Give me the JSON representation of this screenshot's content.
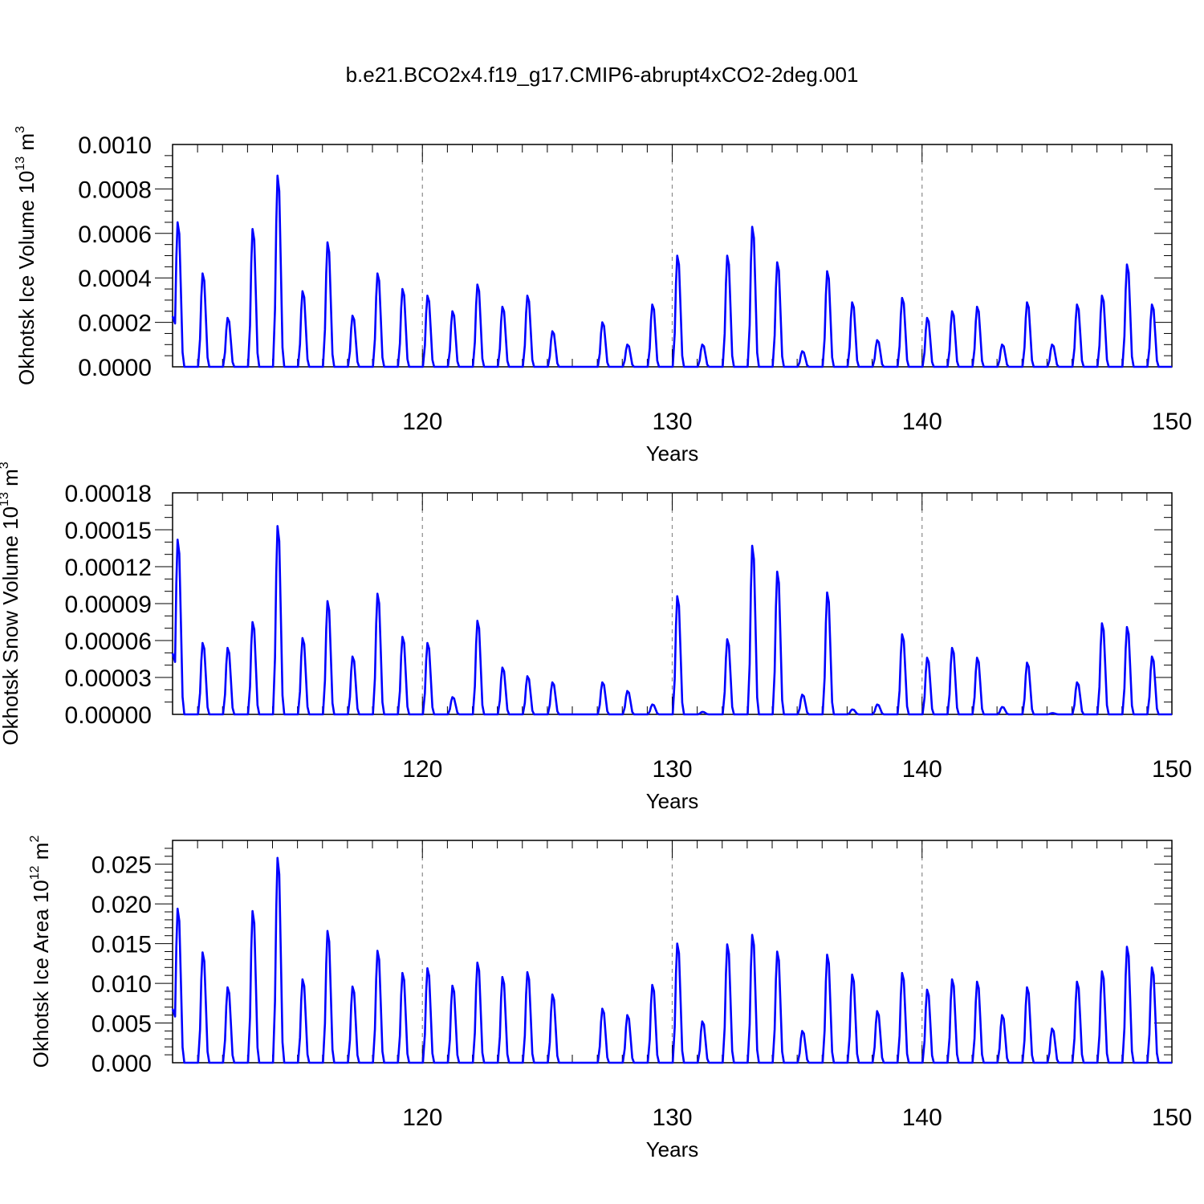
{
  "title": "b.e21.BCO2x4.f19_g17.CMIP6-abrupt4xCO2-2deg.001",
  "line_color": "#0000ff",
  "grid_color": "#8c8c8c",
  "chart_data": [
    {
      "type": "line",
      "id": "ice-volume",
      "ylabel": "Okhotsk Ice Volume 10",
      "ylabel_exp": "13",
      "ylabel_unit": " m",
      "ylabel_unit_exp": "3",
      "xlabel": "Years",
      "xlim": [
        110,
        150
      ],
      "ylim": [
        0,
        0.001
      ],
      "yticks": [
        "0.0000",
        "0.0002",
        "0.0004",
        "0.0006",
        "0.0008",
        "0.0010"
      ],
      "ytick_values": [
        0,
        0.0002,
        0.0004,
        0.0006,
        0.0008,
        0.001
      ],
      "y_minor_step": 5e-05,
      "xticks": [
        "120",
        "130",
        "140",
        "150"
      ],
      "xtick_values": [
        120,
        130,
        140,
        150
      ],
      "x_minor_step": 1,
      "grid_x": [
        120,
        130,
        140
      ],
      "peaks": [
        0.00065,
        0.00042,
        0.00022,
        0.00062,
        0.00086,
        0.00034,
        0.00056,
        0.00023,
        0.00042,
        0.00035,
        0.00032,
        0.00025,
        0.00037,
        0.00027,
        0.00032,
        0.00016,
        0,
        0.0002,
        0.0001,
        0.00028,
        0.0005,
        0.0001,
        0.0005,
        0.00063,
        0.00047,
        7e-05,
        0.00043,
        0.00029,
        0.00012,
        0.00031,
        0.00022,
        0.00025,
        0.00027,
        0.0001,
        0.00029,
        0.0001,
        0.00028,
        0.00032,
        0.00046,
        0.00028
      ]
    },
    {
      "type": "line",
      "id": "snow-volume",
      "ylabel": "Okhotsk Snow Volume 10",
      "ylabel_exp": "13",
      "ylabel_unit": " m",
      "ylabel_unit_exp": "3",
      "xlabel": "Years",
      "xlim": [
        110,
        150
      ],
      "ylim": [
        0,
        0.00018
      ],
      "yticks": [
        "0.00000",
        "0.00003",
        "0.00006",
        "0.00009",
        "0.00012",
        "0.00015",
        "0.00018"
      ],
      "ytick_values": [
        0,
        3e-05,
        6e-05,
        9e-05,
        0.00012,
        0.00015,
        0.00018
      ],
      "y_minor_step": 1e-05,
      "xticks": [
        "120",
        "130",
        "140",
        "150"
      ],
      "xtick_values": [
        120,
        130,
        140,
        150
      ],
      "x_minor_step": 1,
      "grid_x": [
        120,
        130,
        140
      ],
      "peaks": [
        0.000142,
        5.8e-05,
        5.4e-05,
        7.5e-05,
        0.000153,
        6.2e-05,
        9.2e-05,
        4.7e-05,
        9.8e-05,
        6.3e-05,
        5.8e-05,
        1.4e-05,
        7.6e-05,
        3.8e-05,
        3.1e-05,
        2.6e-05,
        0,
        2.6e-05,
        1.9e-05,
        8e-06,
        9.6e-05,
        2e-06,
        6.1e-05,
        0.000137,
        0.000116,
        1.6e-05,
        9.9e-05,
        4e-06,
        8e-06,
        6.5e-05,
        4.6e-05,
        5.4e-05,
        4.6e-05,
        6e-06,
        4.2e-05,
        1e-06,
        2.6e-05,
        7.4e-05,
        7.1e-05,
        4.7e-05
      ]
    },
    {
      "type": "line",
      "id": "ice-area",
      "ylabel": "Okhotsk Ice Area 10",
      "ylabel_exp": "12",
      "ylabel_unit": " m",
      "ylabel_unit_exp": "2",
      "xlabel": "Years",
      "xlim": [
        110,
        150
      ],
      "ylim": [
        0,
        0.028
      ],
      "yticks": [
        "0.000",
        "0.005",
        "0.010",
        "0.015",
        "0.020",
        "0.025"
      ],
      "ytick_values": [
        0,
        0.005,
        0.01,
        0.015,
        0.02,
        0.025
      ],
      "y_minor_step": 0.001,
      "xticks": [
        "120",
        "130",
        "140",
        "150"
      ],
      "xtick_values": [
        120,
        130,
        140,
        150
      ],
      "x_minor_step": 1,
      "grid_x": [
        120,
        130,
        140
      ],
      "peaks": [
        0.0194,
        0.0139,
        0.0095,
        0.0191,
        0.0258,
        0.0105,
        0.0166,
        0.0096,
        0.0141,
        0.0113,
        0.0119,
        0.0097,
        0.0126,
        0.0108,
        0.0114,
        0.0086,
        0,
        0.0068,
        0.006,
        0.0098,
        0.015,
        0.0052,
        0.0149,
        0.0161,
        0.014,
        0.004,
        0.0136,
        0.0111,
        0.0065,
        0.0113,
        0.0092,
        0.0105,
        0.0102,
        0.006,
        0.0095,
        0.0043,
        0.0102,
        0.0115,
        0.0146,
        0.012
      ]
    }
  ]
}
